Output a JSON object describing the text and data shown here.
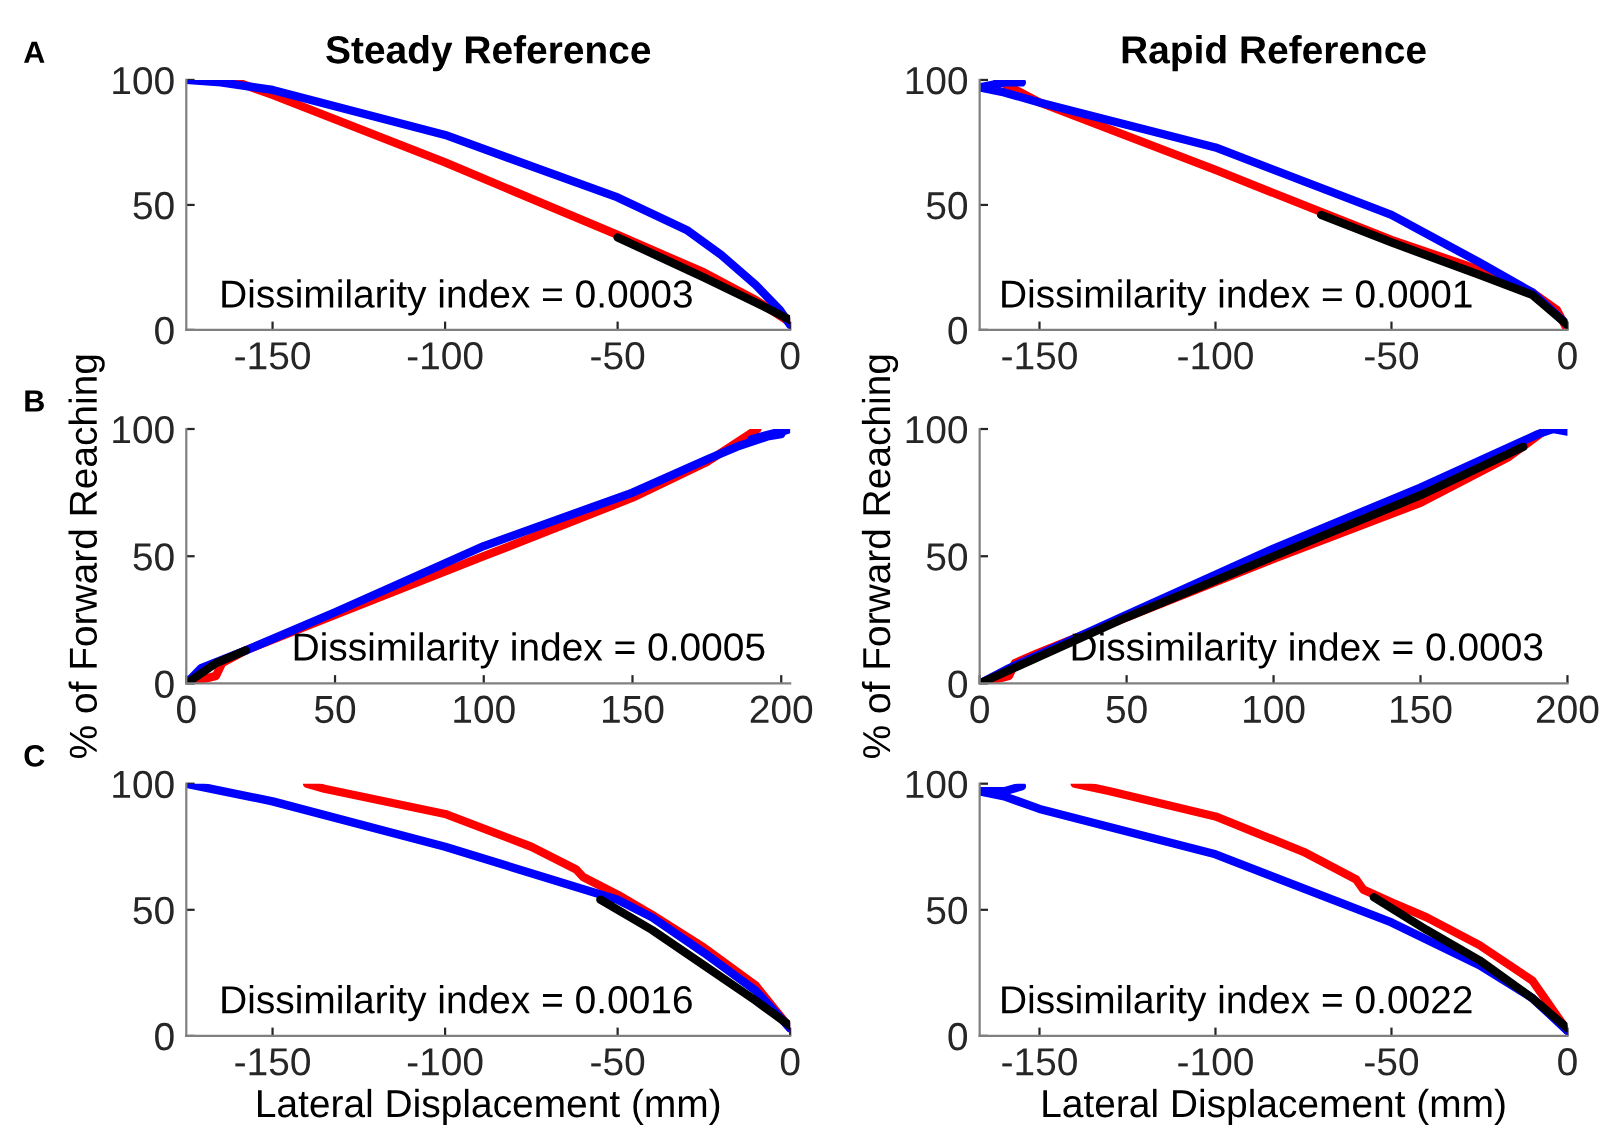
{
  "chart_data": [
    {
      "type": "line",
      "title": "Steady Reference",
      "annotations": [
        "A",
        "Dissimilarity index = 0.0003"
      ],
      "xlim": [
        -175,
        0
      ],
      "xticks": [
        -150,
        -100,
        -50,
        0
      ],
      "ylim": [
        0,
        100
      ],
      "yticks": [
        0,
        50,
        100
      ],
      "grid": false,
      "legend": false,
      "series": [
        {
          "color": "#ff0000",
          "x": [
            -162,
            -150,
            -100,
            -50,
            -25,
            -10,
            0
          ],
          "values": [
            100,
            94,
            67,
            38,
            23,
            12,
            3
          ]
        },
        {
          "color": "#0000ff",
          "x": [
            -175,
            -165,
            -150,
            -100,
            -50,
            -30,
            -20,
            -10,
            -3,
            0
          ],
          "values": [
            100,
            99,
            96,
            78,
            53,
            40,
            30,
            18,
            8,
            2
          ]
        },
        {
          "color": "#000000",
          "x": [
            -50,
            -25,
            -10,
            0
          ],
          "values": [
            37,
            21,
            11,
            4
          ]
        }
      ]
    },
    {
      "type": "line",
      "title": "Rapid Reference",
      "annotations": [
        "Dissimilarity index = 0.0001"
      ],
      "xlim": [
        -167,
        0
      ],
      "xticks": [
        -150,
        -100,
        -50,
        0
      ],
      "ylim": [
        0,
        100
      ],
      "yticks": [
        0,
        50,
        100
      ],
      "grid": false,
      "legend": false,
      "series": [
        {
          "color": "#ff0000",
          "x": [
            -162,
            -150,
            -100,
            -50,
            -25,
            -10,
            -3,
            0
          ],
          "values": [
            100,
            91,
            64,
            36,
            24,
            15,
            8,
            0
          ]
        },
        {
          "color": "#0000ff",
          "x": [
            -155,
            -160,
            -167,
            -160,
            -150,
            -100,
            -50,
            -25,
            -10,
            0
          ],
          "values": [
            99,
            99,
            97,
            95,
            91,
            73,
            46,
            27,
            15,
            2
          ]
        },
        {
          "color": "#000000",
          "x": [
            -70,
            -50,
            -25,
            -10,
            0
          ],
          "values": [
            46,
            35,
            22,
            14,
            2
          ]
        }
      ]
    },
    {
      "type": "line",
      "ylabel": "% of Forward Reaching",
      "annotations": [
        "B",
        "Dissimilarity index = 0.0005"
      ],
      "xlim": [
        0,
        203
      ],
      "xticks": [
        0,
        50,
        100,
        150,
        200
      ],
      "ylim": [
        0,
        100
      ],
      "yticks": [
        0,
        50,
        100
      ],
      "grid": false,
      "legend": false,
      "series": [
        {
          "color": "#ff0000",
          "x": [
            0,
            10,
            12,
            20,
            50,
            100,
            150,
            175,
            192
          ],
          "values": [
            0,
            3,
            8,
            13,
            27,
            50,
            73,
            87,
            100
          ]
        },
        {
          "color": "#0000ff",
          "x": [
            0,
            5,
            20,
            50,
            100,
            150,
            175,
            185,
            203,
            190,
            200
          ],
          "values": [
            0,
            6,
            13,
            28,
            54,
            75,
            88,
            93,
            100,
            96,
            98
          ]
        },
        {
          "color": "#000000",
          "x": [
            0,
            10,
            20
          ],
          "values": [
            0,
            8,
            13
          ]
        }
      ]
    },
    {
      "type": "line",
      "ylabel": "% of Forward Reaching",
      "annotations": [
        "Dissimilarity index = 0.0003"
      ],
      "xlim": [
        0,
        200
      ],
      "xticks": [
        0,
        50,
        100,
        150,
        200
      ],
      "ylim": [
        0,
        100
      ],
      "yticks": [
        0,
        50,
        100
      ],
      "grid": false,
      "legend": false,
      "series": [
        {
          "color": "#ff0000",
          "x": [
            0,
            10,
            12,
            20,
            50,
            100,
            150,
            180,
            193
          ],
          "values": [
            0,
            3,
            8,
            12,
            26,
            49,
            71,
            89,
            100
          ]
        },
        {
          "color": "#0000ff",
          "x": [
            0,
            10,
            50,
            100,
            150,
            190,
            195,
            200
          ],
          "values": [
            0,
            6,
            27,
            53,
            77,
            98,
            100,
            99
          ]
        },
        {
          "color": "#000000",
          "x": [
            0,
            50,
            100,
            150,
            185
          ],
          "values": [
            0,
            26,
            50,
            74,
            93
          ]
        }
      ]
    },
    {
      "type": "line",
      "xlabel": "Lateral Displacement (mm)",
      "annotations": [
        "C",
        "Dissimilarity index = 0.0016"
      ],
      "xlim": [
        -175,
        0
      ],
      "xticks": [
        -150,
        -100,
        -50,
        0
      ],
      "ylim": [
        0,
        100
      ],
      "yticks": [
        0,
        50,
        100
      ],
      "grid": false,
      "legend": false,
      "series": [
        {
          "color": "#ff0000",
          "x": [
            -140,
            -135,
            -100,
            -75,
            -62,
            -60,
            -50,
            -40,
            -25,
            -10,
            0
          ],
          "values": [
            100,
            98,
            88,
            75,
            66,
            63,
            56,
            48,
            35,
            20,
            3
          ]
        },
        {
          "color": "#0000ff",
          "x": [
            -175,
            -150,
            -100,
            -50,
            -40,
            -25,
            -10,
            0
          ],
          "values": [
            100,
            93,
            75,
            54,
            47,
            33,
            18,
            3
          ]
        },
        {
          "color": "#000000",
          "x": [
            -55,
            -40,
            -25,
            -10,
            0
          ],
          "values": [
            54,
            42,
            28,
            14,
            4
          ]
        }
      ]
    },
    {
      "type": "line",
      "xlabel": "Lateral Displacement (mm)",
      "annotations": [
        "Dissimilarity index = 0.0022"
      ],
      "xlim": [
        -167,
        0
      ],
      "xticks": [
        -150,
        -100,
        -50,
        0
      ],
      "ylim": [
        0,
        100
      ],
      "yticks": [
        0,
        50,
        100
      ],
      "grid": false,
      "legend": false,
      "series": [
        {
          "color": "#ff0000",
          "x": [
            -140,
            -130,
            -100,
            -75,
            -60,
            -58,
            -50,
            -40,
            -25,
            -10,
            0
          ],
          "values": [
            100,
            97,
            87,
            73,
            62,
            58,
            53,
            47,
            36,
            22,
            2
          ]
        },
        {
          "color": "#0000ff",
          "x": [
            -155,
            -160,
            -167,
            -160,
            -150,
            -100,
            -50,
            -25,
            -10,
            0
          ],
          "values": [
            99,
            97,
            97,
            95,
            90,
            72,
            45,
            28,
            15,
            2
          ]
        },
        {
          "color": "#000000",
          "x": [
            -55,
            -40,
            -25,
            -10,
            0
          ],
          "values": [
            55,
            42,
            30,
            15,
            3
          ]
        }
      ]
    }
  ]
}
